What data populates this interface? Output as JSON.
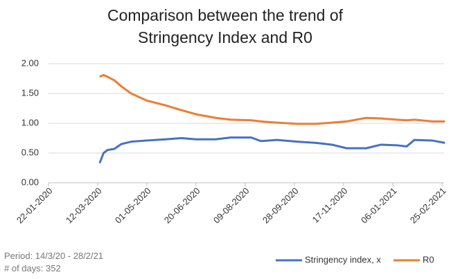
{
  "chart_data": {
    "type": "line",
    "title": "Comparison between the trend of Stringency Index and R0",
    "annotations": [
      "Period: 14/3/20 - 28/2/21",
      "# of days: 352"
    ],
    "x": [
      "14-03-2020",
      "18-03-2020",
      "22-03-2020",
      "29-03-2020",
      "05-04-2020",
      "15-04-2020",
      "01-05-2020",
      "20-05-2020",
      "05-06-2020",
      "20-06-2020",
      "10-07-2020",
      "25-07-2020",
      "15-08-2020",
      "25-08-2020",
      "10-09-2020",
      "01-10-2020",
      "20-10-2020",
      "05-11-2020",
      "20-11-2020",
      "10-12-2020",
      "25-12-2020",
      "10-01-2021",
      "20-01-2021",
      "28-01-2021",
      "15-02-2021",
      "28-02-2021"
    ],
    "series": [
      {
        "name": "Stringency index, x",
        "color": "#4472c4",
        "values": [
          0.33,
          0.5,
          0.55,
          0.57,
          0.65,
          0.69,
          0.71,
          0.73,
          0.75,
          0.73,
          0.73,
          0.76,
          0.76,
          0.7,
          0.72,
          0.69,
          0.67,
          0.64,
          0.58,
          0.58,
          0.64,
          0.63,
          0.61,
          0.72,
          0.71,
          0.67
        ]
      },
      {
        "name": "R0",
        "color": "#ed7d31",
        "values": [
          1.78,
          1.81,
          1.78,
          1.72,
          1.62,
          1.5,
          1.38,
          1.3,
          1.22,
          1.15,
          1.09,
          1.06,
          1.05,
          1.03,
          1.01,
          0.99,
          0.99,
          1.01,
          1.03,
          1.09,
          1.08,
          1.06,
          1.05,
          1.06,
          1.03,
          1.03
        ]
      }
    ],
    "xlim": [
      "22-01-2020",
      "25-02-2021"
    ],
    "xticks": [
      "22-01-2020",
      "12-03-2020",
      "01-05-2020",
      "20-06-2020",
      "09-08-2020",
      "28-09-2020",
      "17-11-2020",
      "06-01-2021",
      "25-02-2021"
    ],
    "ylim": [
      0,
      2
    ],
    "yticks": [
      {
        "value": 0,
        "label": "0.00"
      },
      {
        "value": 0.5,
        "label": "0.50"
      },
      {
        "value": 1,
        "label": "1.00"
      },
      {
        "value": 1.5,
        "label": "1.50"
      },
      {
        "value": 2,
        "label": "2.00"
      }
    ],
    "grid": true,
    "legend": "bottom-right"
  }
}
